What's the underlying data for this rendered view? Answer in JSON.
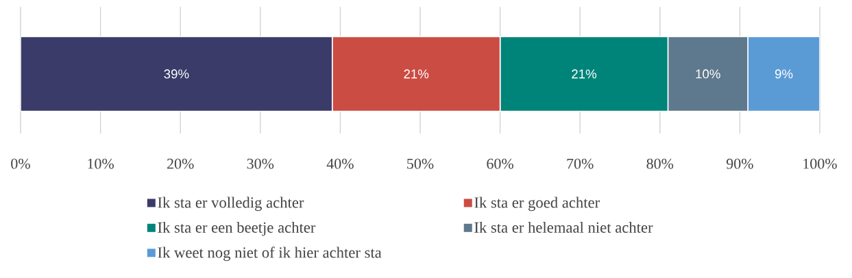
{
  "chart_data": {
    "type": "bar",
    "orientation": "horizontal",
    "stacked": true,
    "categories": [
      null
    ],
    "series": [
      {
        "name": "Ik sta er volledig achter",
        "color": "#3a3b69",
        "values": [
          39
        ],
        "value_labels": [
          "39%"
        ]
      },
      {
        "name": "Ik sta er goed achter",
        "color": "#cb4c43",
        "values": [
          21
        ],
        "value_labels": [
          "21%"
        ]
      },
      {
        "name": "Ik sta er een beetje achter",
        "color": "#00847a",
        "values": [
          21
        ],
        "value_labels": [
          "21%"
        ]
      },
      {
        "name": "Ik sta er helemaal niet achter",
        "color": "#5e788d",
        "values": [
          10
        ],
        "value_labels": [
          "10%"
        ]
      },
      {
        "name": "Ik weet nog niet of ik hier achter sta",
        "color": "#5b9bd5",
        "values": [
          9
        ],
        "value_labels": [
          "9%"
        ]
      }
    ],
    "xlim": [
      0,
      100
    ],
    "xticks": [
      {
        "value": 0,
        "label": "0%"
      },
      {
        "value": 10,
        "label": "10%"
      },
      {
        "value": 20,
        "label": "20%"
      },
      {
        "value": 30,
        "label": "30%"
      },
      {
        "value": 40,
        "label": "40%"
      },
      {
        "value": 50,
        "label": "50%"
      },
      {
        "value": 60,
        "label": "60%"
      },
      {
        "value": 70,
        "label": "70%"
      },
      {
        "value": 80,
        "label": "80%"
      },
      {
        "value": 90,
        "label": "90%"
      },
      {
        "value": 100,
        "label": "100%"
      }
    ],
    "grid": "x",
    "legend": "bottom"
  }
}
